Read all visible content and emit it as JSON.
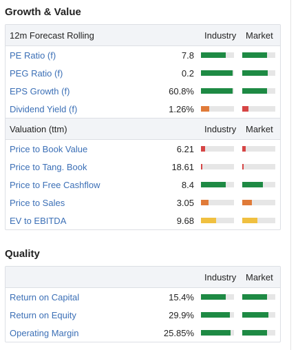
{
  "growth": {
    "title": "Growth & Value",
    "forecast_header": {
      "label": "12m Forecast Rolling",
      "industry": "Industry",
      "market": "Market"
    },
    "forecast_rows": [
      {
        "name": "PE Ratio (f)",
        "value": "7.8",
        "industry_level": 0.75,
        "market_level": 0.75,
        "industry_color": "#1e8a44",
        "market_color": "#1e8a44"
      },
      {
        "name": "PEG Ratio (f)",
        "value": "0.2",
        "industry_level": 0.95,
        "market_level": 0.78,
        "industry_color": "#1e8a44",
        "market_color": "#1e8a44"
      },
      {
        "name": "EPS Growth (f)",
        "value": "60.8%",
        "industry_level": 0.95,
        "market_level": 0.75,
        "industry_color": "#1e8a44",
        "market_color": "#1e8a44"
      },
      {
        "name": "Dividend Yield (f)",
        "value": "1.26%",
        "industry_level": 0.25,
        "market_level": 0.18,
        "industry_color": "#e07b39",
        "market_color": "#d64545"
      }
    ],
    "valuation_header": {
      "label": "Valuation (ttm)",
      "industry": "Industry",
      "market": "Market"
    },
    "valuation_rows": [
      {
        "name": "Price to Book Value",
        "value": "6.21",
        "industry_level": 0.12,
        "market_level": 0.1,
        "industry_color": "#d64545",
        "market_color": "#d64545"
      },
      {
        "name": "Price to Tang. Book",
        "value": "18.61",
        "industry_level": 0.04,
        "market_level": 0.04,
        "industry_color": "#d64545",
        "market_color": "#d64545"
      },
      {
        "name": "Price to Free Cashflow",
        "value": "8.4",
        "industry_level": 0.75,
        "market_level": 0.62,
        "industry_color": "#1e8a44",
        "market_color": "#1e8a44"
      },
      {
        "name": "Price to Sales",
        "value": "3.05",
        "industry_level": 0.22,
        "market_level": 0.3,
        "industry_color": "#e07b39",
        "market_color": "#e07b39"
      },
      {
        "name": "EV to EBITDA",
        "value": "9.68",
        "industry_level": 0.45,
        "market_level": 0.45,
        "industry_color": "#f0c040",
        "market_color": "#f0c040"
      }
    ]
  },
  "quality": {
    "title": "Quality",
    "header": {
      "label": "",
      "industry": "Industry",
      "market": "Market"
    },
    "rows": [
      {
        "name": "Return on Capital",
        "value": "15.4%",
        "industry_level": 0.75,
        "market_level": 0.75,
        "industry_color": "#1e8a44",
        "market_color": "#1e8a44"
      },
      {
        "name": "Return on Equity",
        "value": "29.9%",
        "industry_level": 0.88,
        "market_level": 0.8,
        "industry_color": "#1e8a44",
        "market_color": "#1e8a44"
      },
      {
        "name": "Operating Margin",
        "value": "25.85%",
        "industry_level": 0.9,
        "market_level": 0.75,
        "industry_color": "#1e8a44",
        "market_color": "#1e8a44"
      }
    ]
  }
}
